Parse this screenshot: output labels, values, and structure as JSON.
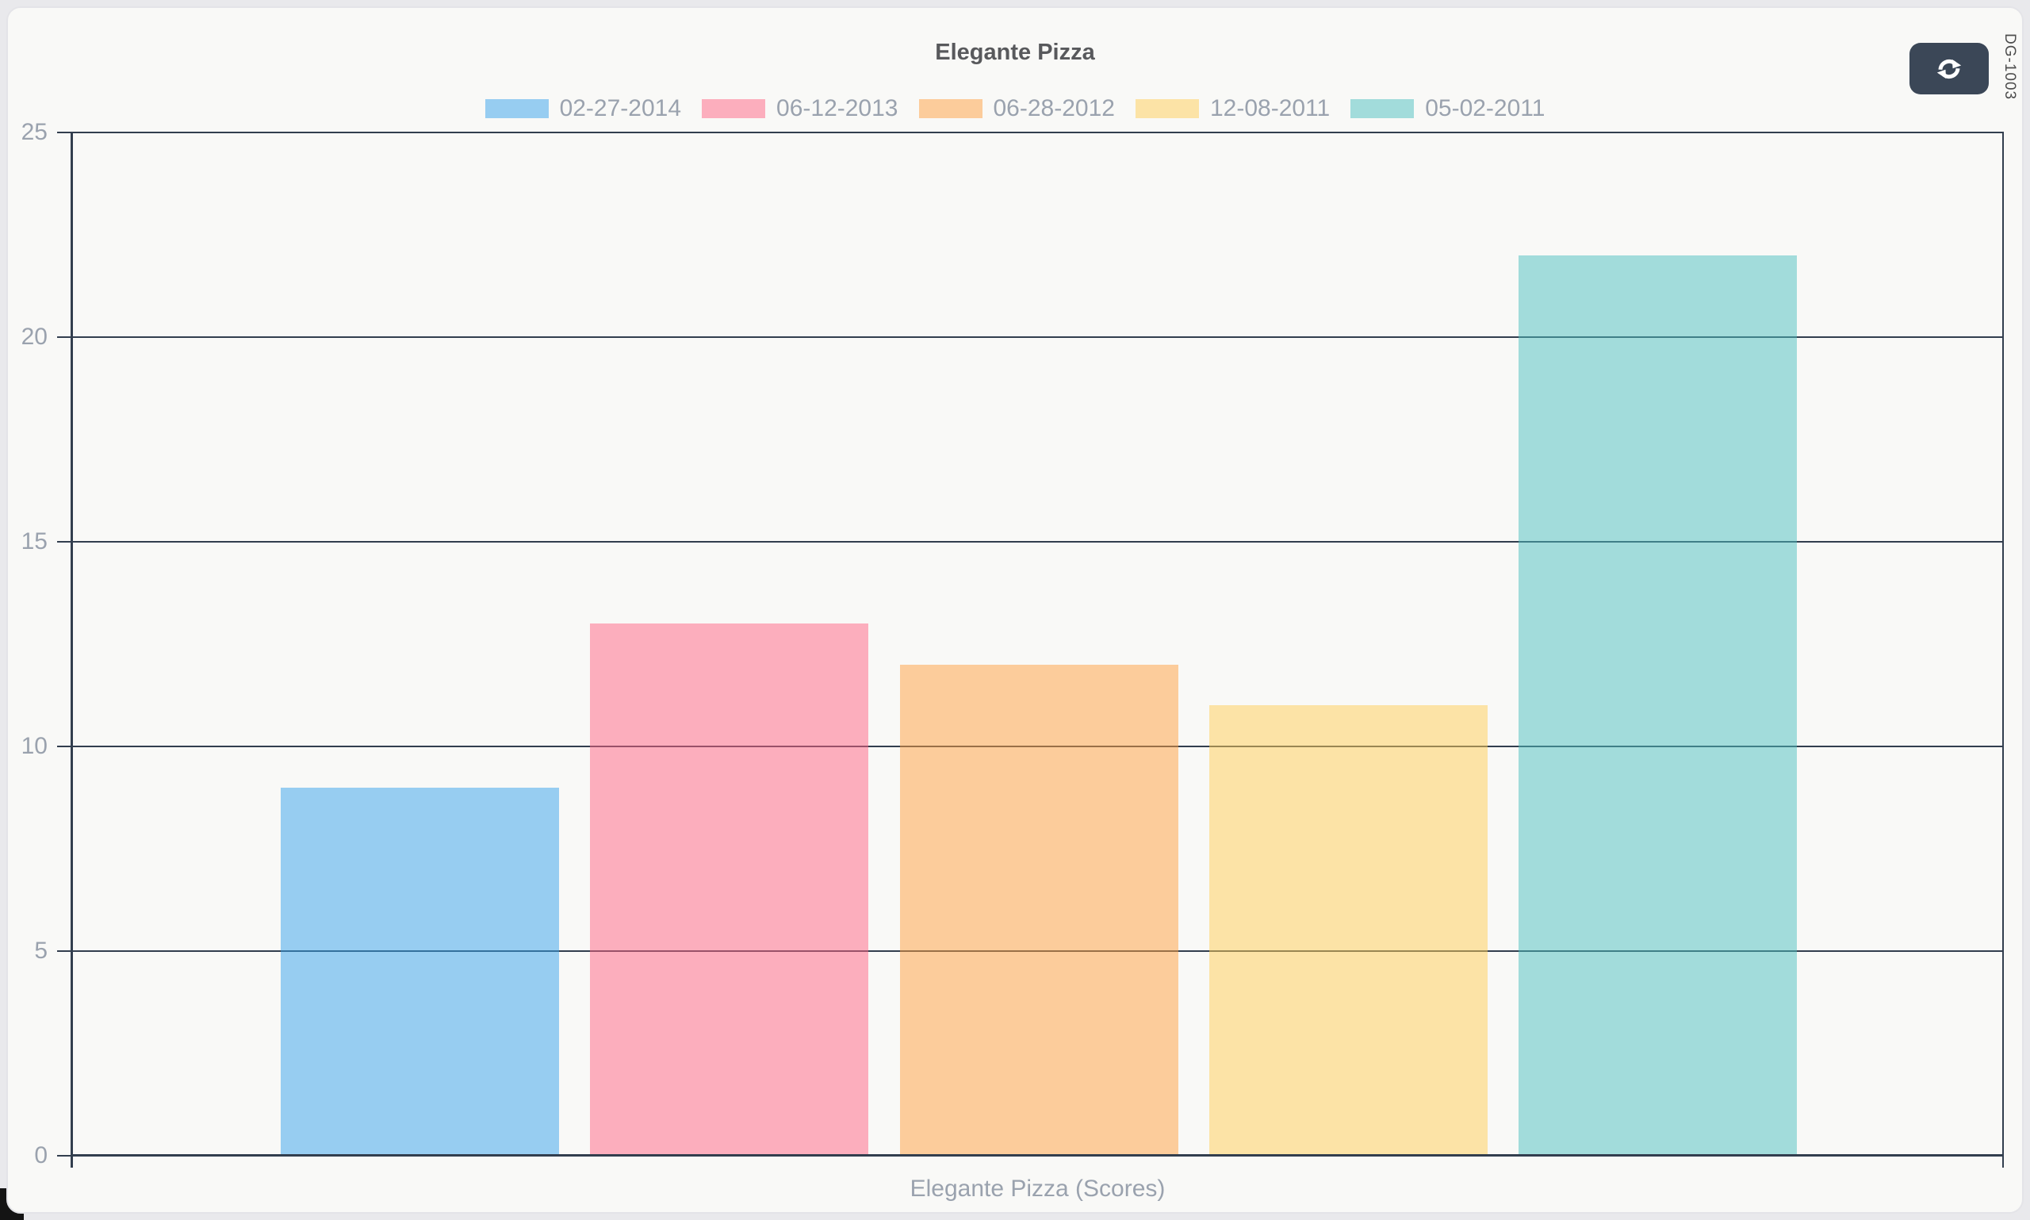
{
  "title": "Elegante Pizza",
  "page_tag": "DG-1003",
  "toolbar": {
    "refresh_icon": "refresh"
  },
  "colors": {
    "axis": "#323e4e",
    "text_muted": "#9aa2ae",
    "title_text": "#58595c",
    "button_bg": "#3b4757",
    "card_bg": "#f9f9f7"
  },
  "chart_data": {
    "type": "bar",
    "title": "Elegante Pizza",
    "xlabel": "Elegante Pizza (Scores)",
    "ylabel": "",
    "categories": [
      "02-27-2014",
      "06-12-2013",
      "06-28-2012",
      "12-08-2011",
      "05-02-2011"
    ],
    "values": [
      9,
      13,
      12,
      11,
      22
    ],
    "bar_colors": [
      "rgba(54,162,235,0.5)",
      "rgba(255,99,132,0.5)",
      "rgba(255,159,64,0.5)",
      "rgba(255,205,86,0.5)",
      "rgba(75,192,192,0.5)"
    ],
    "ylim": [
      0,
      25
    ],
    "yticks": [
      0,
      5,
      10,
      15,
      20,
      25
    ],
    "grid": true,
    "legend_position": "top"
  }
}
